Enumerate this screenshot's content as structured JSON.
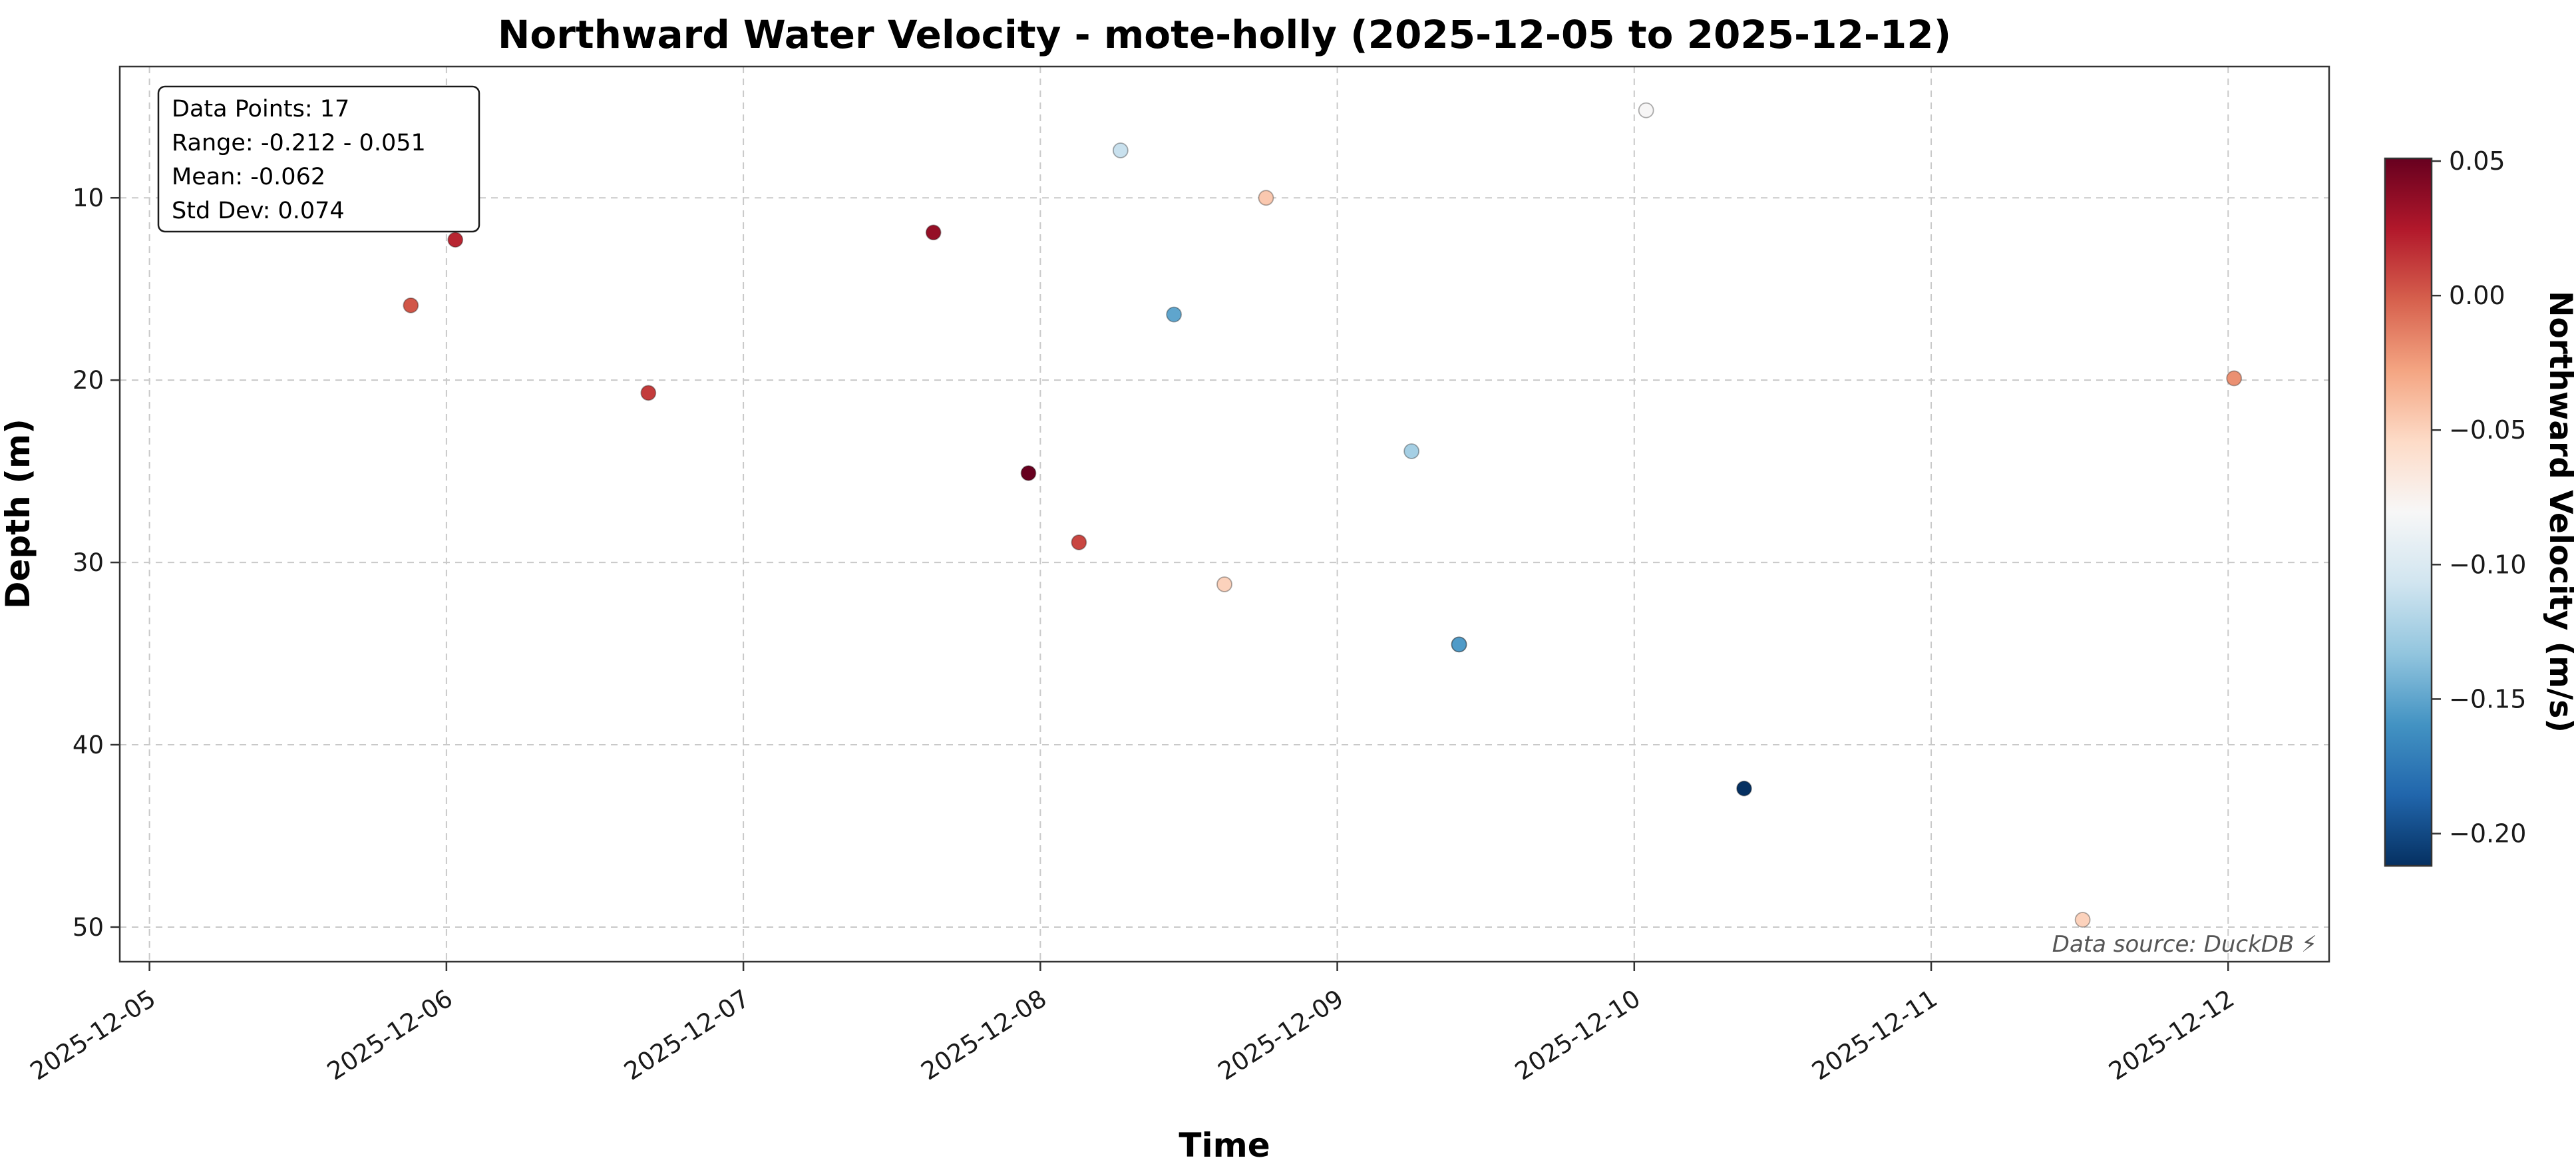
{
  "figure": {
    "background": "#ffffff"
  },
  "chart_data": {
    "type": "scatter",
    "title": "Northward Water Velocity - mote-holly (2025-12-05 to 2025-12-12)",
    "xlabel": "Time",
    "ylabel": "Depth (m)",
    "y_axis_inverted": true,
    "grid": {
      "visible": true,
      "style": "dashed",
      "color": "#c9c9c9"
    },
    "x_tick_labels": [
      "2025-12-05",
      "2025-12-06",
      "2025-12-07",
      "2025-12-08",
      "2025-12-09",
      "2025-12-10",
      "2025-12-11",
      "2025-12-12"
    ],
    "x_tick_days": [
      0,
      1,
      2,
      3,
      4,
      5,
      6,
      7
    ],
    "x_range_days": [
      -0.1,
      7.34
    ],
    "y_ticks": [
      10,
      20,
      30,
      40,
      50
    ],
    "y_range": [
      2.8,
      51.9
    ],
    "color_range": [
      -0.212,
      0.051
    ],
    "colormap": "RdBu_r",
    "colormap_stops": [
      "#053061",
      "#2166ac",
      "#4393c3",
      "#92c5de",
      "#d1e5f0",
      "#f7f7f7",
      "#fddbc7",
      "#f4a582",
      "#d6604d",
      "#b2182b",
      "#67001f"
    ],
    "colorbar": {
      "label": "Northward Velocity (m/s)",
      "tick_values": [
        0.05,
        0.0,
        -0.05,
        -0.1,
        -0.15,
        -0.2
      ],
      "tick_labels": [
        "0.05",
        "0.00",
        "−0.05",
        "−0.10",
        "−0.15",
        "−0.20"
      ]
    },
    "points": [
      {
        "time": "2025-12-05 21:00",
        "t_days": 0.88,
        "depth": 15.9,
        "velocity": 0.002
      },
      {
        "time": "2025-12-06 01:00",
        "t_days": 1.03,
        "depth": 12.3,
        "velocity": 0.02
      },
      {
        "time": "2025-12-06 16:00",
        "t_days": 1.68,
        "depth": 20.7,
        "velocity": 0.012
      },
      {
        "time": "2025-12-07 15:00",
        "t_days": 2.64,
        "depth": 11.9,
        "velocity": 0.035
      },
      {
        "time": "2025-12-07 23:00",
        "t_days": 2.96,
        "depth": 25.1,
        "velocity": 0.051
      },
      {
        "time": "2025-12-08 03:00",
        "t_days": 3.13,
        "depth": 28.9,
        "velocity": 0.008
      },
      {
        "time": "2025-12-08 06:00",
        "t_days": 3.27,
        "depth": 7.4,
        "velocity": -0.11
      },
      {
        "time": "2025-12-08 11:00",
        "t_days": 3.45,
        "depth": 16.4,
        "velocity": -0.15
      },
      {
        "time": "2025-12-08 15:00",
        "t_days": 3.62,
        "depth": 31.2,
        "velocity": -0.05
      },
      {
        "time": "2025-12-08 18:00",
        "t_days": 3.76,
        "depth": 10.0,
        "velocity": -0.045
      },
      {
        "time": "2025-12-09 06:00",
        "t_days": 4.25,
        "depth": 23.9,
        "velocity": -0.125
      },
      {
        "time": "2025-12-09 10:00",
        "t_days": 4.41,
        "depth": 34.5,
        "velocity": -0.17
      },
      {
        "time": "2025-12-09 10:00",
        "t_days": 4.41,
        "depth": 34.5,
        "velocity": -0.155
      },
      {
        "time": "2025-12-10 01:00",
        "t_days": 5.04,
        "depth": 5.2,
        "velocity": -0.08
      },
      {
        "time": "2025-12-10 09:00",
        "t_days": 5.37,
        "depth": 42.4,
        "velocity": -0.212
      },
      {
        "time": "2025-12-11 12:00",
        "t_days": 6.51,
        "depth": 49.6,
        "velocity": -0.05
      },
      {
        "time": "2025-12-12 00:00",
        "t_days": 7.02,
        "depth": 19.9,
        "velocity": -0.02
      }
    ],
    "stats_box": {
      "lines": [
        "Data Points: 17",
        "Range: -0.212 - 0.051",
        "Mean: -0.062",
        "Std Dev: 0.074"
      ]
    },
    "annotation": "Data source: DuckDB ⚡"
  }
}
